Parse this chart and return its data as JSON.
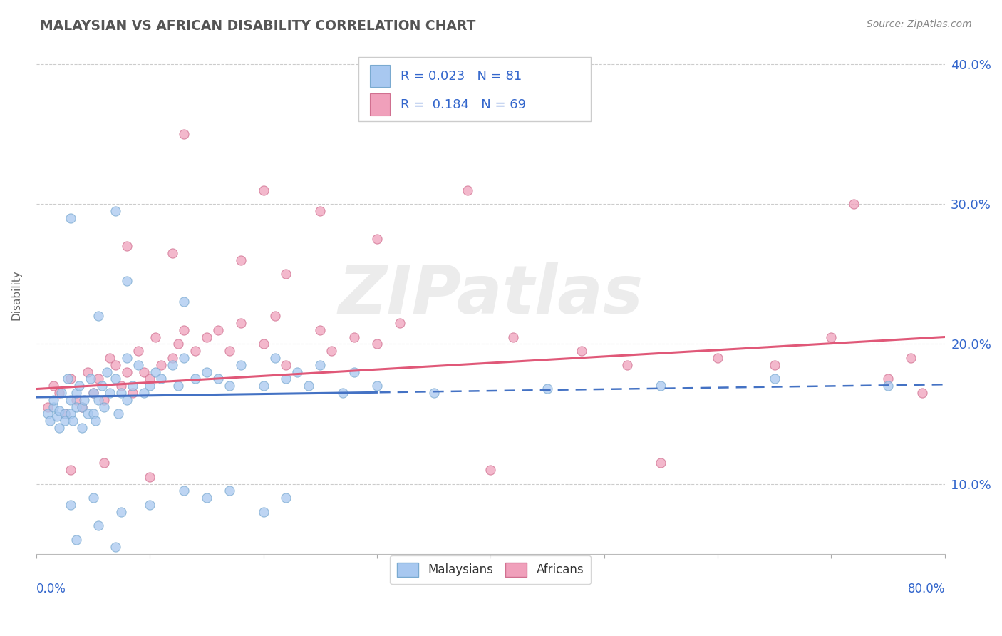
{
  "title": "MALAYSIAN VS AFRICAN DISABILITY CORRELATION CHART",
  "source": "Source: ZipAtlas.com",
  "ylabel": "Disability",
  "xlim": [
    0.0,
    80.0
  ],
  "ylim": [
    5.0,
    42.0
  ],
  "yticks": [
    10.0,
    20.0,
    30.0,
    40.0
  ],
  "malaysian_color": "#A8C8F0",
  "malaysian_edge": "#7AAAD0",
  "african_color": "#F0A0BB",
  "african_edge": "#D07090",
  "trend_malaysian_color": "#4472C4",
  "trend_african_color": "#E05878",
  "legend_color": "#3366CC",
  "background_color": "#FFFFFF",
  "grid_color": "#CCCCCC",
  "title_color": "#555555",
  "source_color": "#888888",
  "ylabel_color": "#666666",
  "mal_r": "0.023",
  "mal_n": "81",
  "afr_r": "0.184",
  "afr_n": "69",
  "mal_trend_x0": 0.5,
  "mal_trend_y0": 16.2,
  "mal_trend_x1": 80.0,
  "mal_trend_y1": 17.1,
  "afr_trend_x0": 0.5,
  "afr_trend_y0": 16.8,
  "afr_trend_x1": 80.0,
  "afr_trend_y1": 20.5,
  "mal_solid_end_x": 30.0,
  "watermark_text": "ZIPatlas"
}
